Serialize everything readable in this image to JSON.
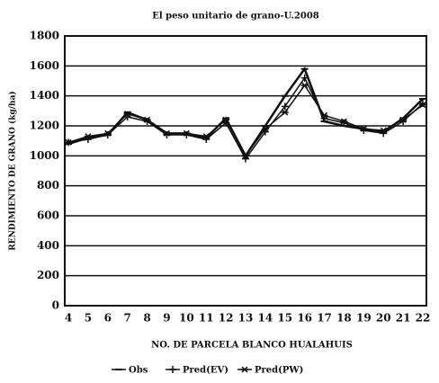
{
  "chart_data": {
    "type": "line",
    "title": "El peso unitario de grano-U.2008",
    "x_label": "NO. DE PARCELA BLANCO HUALAHUIS",
    "y_label": "RENDIMIENTO DE GRANO (kg/ha)",
    "categories": [
      "4",
      "5",
      "6",
      "7",
      "8",
      "9",
      "10",
      "11",
      "12",
      "13",
      "14",
      "15",
      "16",
      "17",
      "18",
      "19",
      "20",
      "21",
      "22"
    ],
    "series": [
      {
        "name": "Obs",
        "color": "#111111",
        "values": [
          1080,
          1120,
          1140,
          1290,
          1240,
          1150,
          1150,
          1120,
          1250,
          1000,
          1200,
          1400,
          1580,
          1230,
          1200,
          1180,
          1160,
          1250,
          1380
        ]
      },
      {
        "name": "Pred(EV)",
        "color": "#111111",
        "values": [
          1090,
          1110,
          1140,
          1260,
          1230,
          1140,
          1140,
          1110,
          1220,
          980,
          1160,
          1330,
          1520,
          1250,
          1220,
          1170,
          1150,
          1230,
          1350
        ]
      },
      {
        "name": "Pred(PW)",
        "color": "#111111",
        "values": [
          1090,
          1130,
          1150,
          1280,
          1240,
          1150,
          1150,
          1130,
          1240,
          1000,
          1180,
          1290,
          1470,
          1270,
          1230,
          1180,
          1170,
          1240,
          1340
        ]
      }
    ],
    "ylim": [
      0,
      1800
    ],
    "yticks": [
      0,
      200,
      400,
      600,
      800,
      1000,
      1200,
      1400,
      1600,
      1800
    ],
    "grid": true
  }
}
